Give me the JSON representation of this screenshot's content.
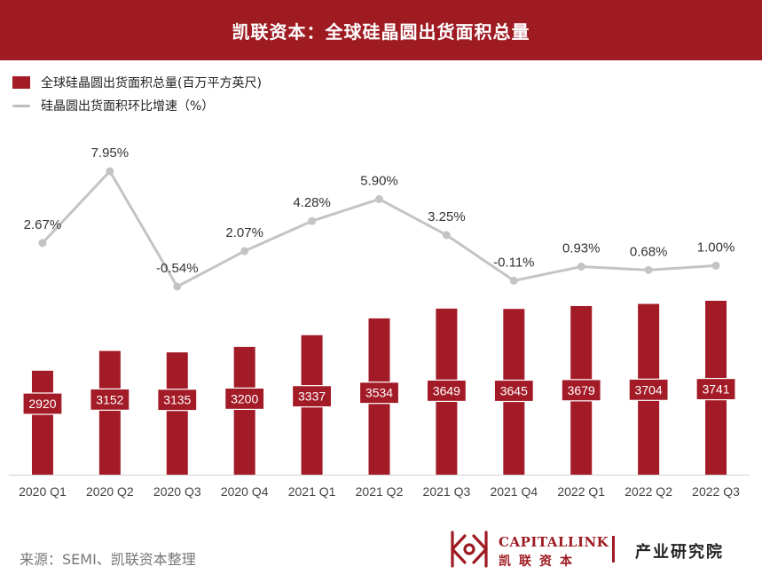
{
  "header": {
    "title": "凯联资本：全球硅晶圆出货面积总量"
  },
  "legend": {
    "bar_label": "全球硅晶圆出货面积总量(百万平方英尺)",
    "line_label": "硅晶圆出货面积环比增速（%）"
  },
  "chart_data": {
    "type": "bar",
    "categories": [
      "2020 Q1",
      "2020 Q2",
      "2020 Q3",
      "2020 Q4",
      "2021 Q1",
      "2021 Q2",
      "2021 Q3",
      "2021 Q4",
      "2022 Q1",
      "2022 Q2",
      "2022 Q3"
    ],
    "series": [
      {
        "name": "全球硅晶圆出货面积总量(百万平方英尺)",
        "type": "bar",
        "values": [
          2920,
          3152,
          3135,
          3200,
          3337,
          3534,
          3649,
          3645,
          3679,
          3704,
          3741
        ],
        "color": "#a31b27"
      },
      {
        "name": "硅晶圆出货面积环比增速（%）",
        "type": "line",
        "values": [
          2.67,
          7.95,
          -0.54,
          2.07,
          4.28,
          5.9,
          3.25,
          -0.11,
          0.93,
          0.68,
          1.0
        ],
        "labels": [
          "2.67%",
          "7.95%",
          "-0.54%",
          "2.07%",
          "4.28%",
          "5.90%",
          "3.25%",
          "-0.11%",
          "0.93%",
          "0.68%",
          "1.00%"
        ],
        "color": "#c4c4c4"
      }
    ],
    "legend": "top-left",
    "grid": false
  },
  "footer": {
    "source": "来源：SEMI、凯联资本整理",
    "brand_en": "CAPITALLINK",
    "brand_cn": "凯联资本",
    "department": "产业研究院"
  }
}
